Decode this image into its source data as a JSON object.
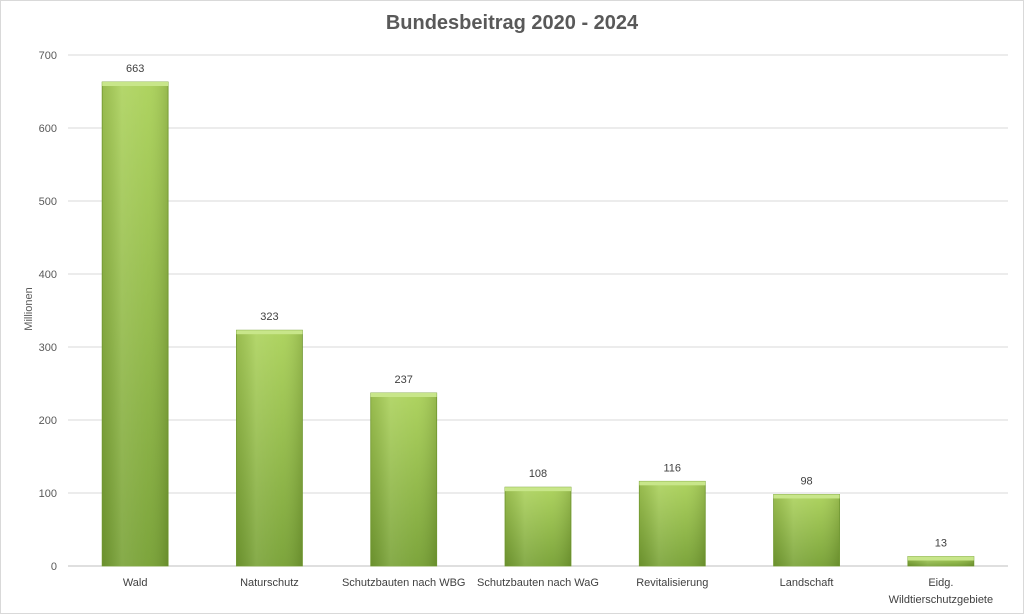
{
  "chart_data": {
    "type": "bar",
    "title": "Bundesbeitrag 2020 - 2024",
    "xlabel": "",
    "ylabel": "Millionen",
    "categories": [
      [
        "Wald"
      ],
      [
        "Naturschutz"
      ],
      [
        "Schutzbauten nach WBG"
      ],
      [
        "Schutzbauten nach WaG"
      ],
      [
        "Revitalisierung"
      ],
      [
        "Landschaft"
      ],
      [
        "Eidg.",
        "Wildtierschutzgebiete"
      ]
    ],
    "values": [
      663,
      323,
      237,
      108,
      116,
      98,
      13
    ],
    "data_labels": [
      "663",
      "323",
      "237",
      "108",
      "116",
      "98",
      "13"
    ],
    "ylim": [
      0,
      700
    ],
    "yticks": [
      0,
      100,
      200,
      300,
      400,
      500,
      600,
      700
    ],
    "grid": true,
    "legend": "none",
    "colors": {
      "bar_light": "#aad158",
      "bar_dark": "#76a032",
      "bar_edge": "#c8e68a",
      "grid": "#d9d9d9",
      "axis": "#bfbfbf"
    }
  }
}
